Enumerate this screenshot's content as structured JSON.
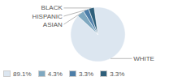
{
  "chart_data": {
    "type": "pie",
    "categories": [
      "WHITE",
      "ASIAN",
      "HISPANIC",
      "BLACK"
    ],
    "values": [
      89.1,
      4.3,
      3.3,
      3.3
    ],
    "value_labels": [
      "89.1%",
      "4.3%",
      "3.3%",
      "3.3%"
    ],
    "colors": [
      "#dce6f0",
      "#7fa8c0",
      "#4d7ea8",
      "#2e5f7a"
    ],
    "legend": "lower left"
  }
}
